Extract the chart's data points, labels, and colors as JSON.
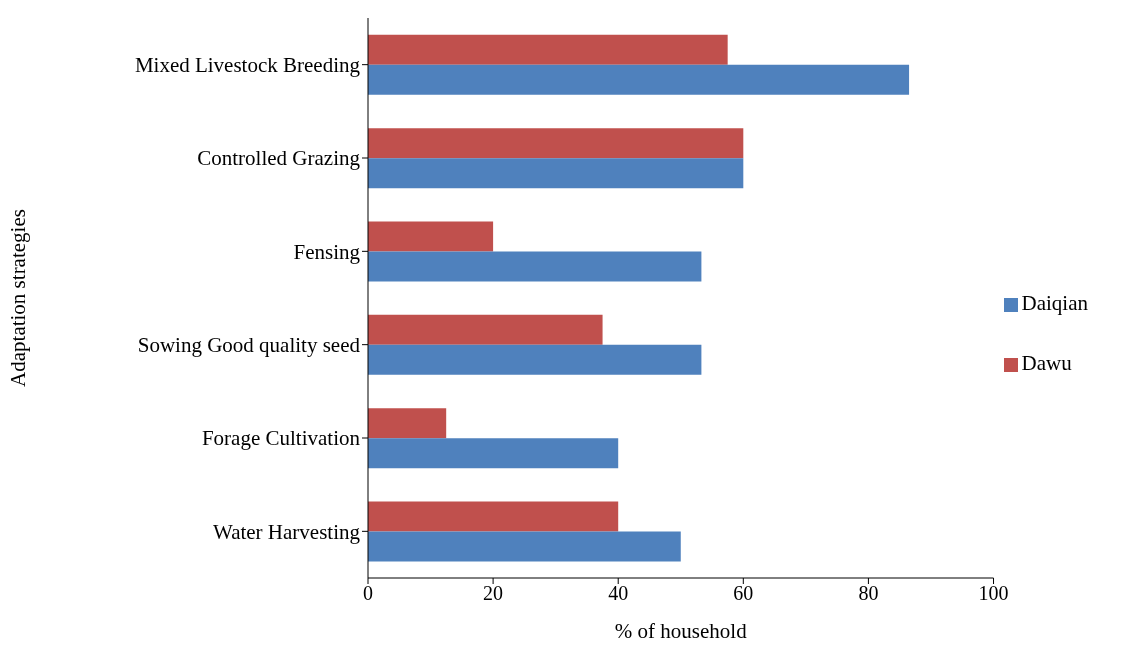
{
  "chart_data": {
    "type": "bar",
    "orientation": "horizontal",
    "xlabel": "% of household",
    "ylabel": "Adaptation strategies",
    "categories": [
      "Mixed Livestock Breeding",
      "Controlled Grazing",
      "Fensing",
      "Sowing Good quality seed",
      "Forage Cultivation",
      "Water Harvesting"
    ],
    "series": [
      {
        "name": "Dawu",
        "color": "#c0504d",
        "values": [
          57.5,
          60,
          20,
          37.5,
          12.5,
          40
        ]
      },
      {
        "name": "Daiqian",
        "color": "#4f81bd",
        "values": [
          86.5,
          60,
          53.3,
          53.3,
          40,
          50
        ]
      }
    ],
    "xlim": [
      0,
      100
    ],
    "xticks": [
      0,
      20,
      40,
      60,
      80,
      100
    ],
    "grid": false,
    "legend": "right"
  }
}
